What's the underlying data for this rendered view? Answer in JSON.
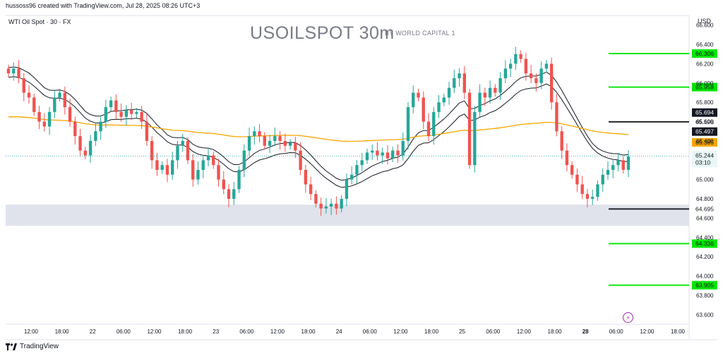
{
  "header": {
    "credit": "hussoss96 created with TradingView.com, Jul 28, 2025 08:26 UTC+3",
    "symbol_line": "WTI Oil Spot · 30 · FX",
    "title": "USOILSPOT 30m",
    "byline": "BY WORLD CAPITAL 1",
    "currency": "USD"
  },
  "footer": {
    "brand": "TradingView"
  },
  "icons": {
    "logo": "tradingview-logo-icon",
    "flash": "lightning-icon"
  },
  "colors": {
    "up": "#26a69a",
    "down": "#ef5350",
    "green_level": "#00e600",
    "black_level": "#131722",
    "orange_ma": "#f7a600",
    "zone": "#e0e3eb"
  },
  "chart_data": {
    "type": "candlestick",
    "ylim": [
      63.5,
      66.7
    ],
    "y_ticks": [
      "66.600",
      "66.400",
      "66.200",
      "66.000",
      "65.800",
      "65.600",
      "65.400",
      "65.200",
      "65.000",
      "64.800",
      "64.600",
      "64.400",
      "64.200",
      "64.000",
      "63.800",
      "63.600"
    ],
    "x_ticks": [
      "12:00",
      "18:00",
      "22",
      "06:00",
      "12:00",
      "18:00",
      "23",
      "06:00",
      "12:00",
      "18:00",
      "24",
      "06:00",
      "12:00",
      "18:00",
      "25",
      "06:00",
      "12:00",
      "18:00",
      "28",
      "06:00",
      "12:00",
      "18:00"
    ],
    "last_price": "65.244",
    "countdown": "03:10",
    "support_zone": [
      64.52,
      64.74
    ],
    "levels": [
      {
        "label": "66.306",
        "value": 66.306,
        "kind": "green"
      },
      {
        "label": "65.958",
        "value": 65.958,
        "kind": "green"
      },
      {
        "label": "65.694",
        "value": 65.694,
        "kind": "black-label"
      },
      {
        "label": "65.598",
        "value": 65.598,
        "kind": "black"
      },
      {
        "label": "65.497",
        "value": 65.497,
        "kind": "black-label"
      },
      {
        "label": "65.385",
        "value": 65.385,
        "kind": "orange-label"
      },
      {
        "label": "64.695",
        "value": 64.695,
        "kind": "black"
      },
      {
        "label": "64.336",
        "value": 64.336,
        "kind": "green"
      },
      {
        "label": "63.905",
        "value": 63.905,
        "kind": "green"
      }
    ],
    "close_series": [
      66.1,
      66.15,
      66.05,
      65.9,
      65.85,
      65.7,
      65.6,
      65.55,
      65.7,
      65.85,
      65.9,
      65.75,
      65.6,
      65.45,
      65.3,
      65.25,
      65.4,
      65.5,
      65.6,
      65.75,
      65.82,
      65.7,
      65.65,
      65.72,
      65.68,
      65.7,
      65.6,
      65.4,
      65.2,
      65.1,
      65.15,
      65.05,
      65.2,
      65.35,
      65.4,
      65.2,
      65.0,
      65.1,
      65.2,
      65.25,
      65.15,
      65.0,
      64.9,
      64.8,
      64.9,
      65.1,
      65.3,
      65.45,
      65.5,
      65.45,
      65.35,
      65.4,
      65.45,
      65.4,
      65.35,
      65.38,
      65.3,
      65.1,
      64.95,
      64.85,
      64.75,
      64.7,
      64.72,
      64.75,
      64.7,
      64.8,
      65.0,
      65.05,
      65.15,
      65.2,
      65.28,
      65.3,
      65.25,
      65.28,
      65.22,
      65.3,
      65.25,
      65.4,
      65.75,
      65.9,
      65.85,
      65.6,
      65.45,
      65.7,
      65.8,
      65.85,
      65.95,
      66.05,
      66.1,
      65.9,
      65.15,
      65.7,
      65.9,
      65.85,
      65.95,
      65.9,
      66.05,
      66.15,
      66.2,
      66.3,
      66.25,
      66.1,
      66.05,
      66.0,
      66.15,
      66.2,
      65.8,
      65.5,
      65.3,
      65.15,
      65.05,
      64.95,
      64.85,
      64.8,
      64.82,
      64.95,
      65.05,
      65.1,
      65.15,
      65.2,
      65.1,
      65.24
    ]
  }
}
